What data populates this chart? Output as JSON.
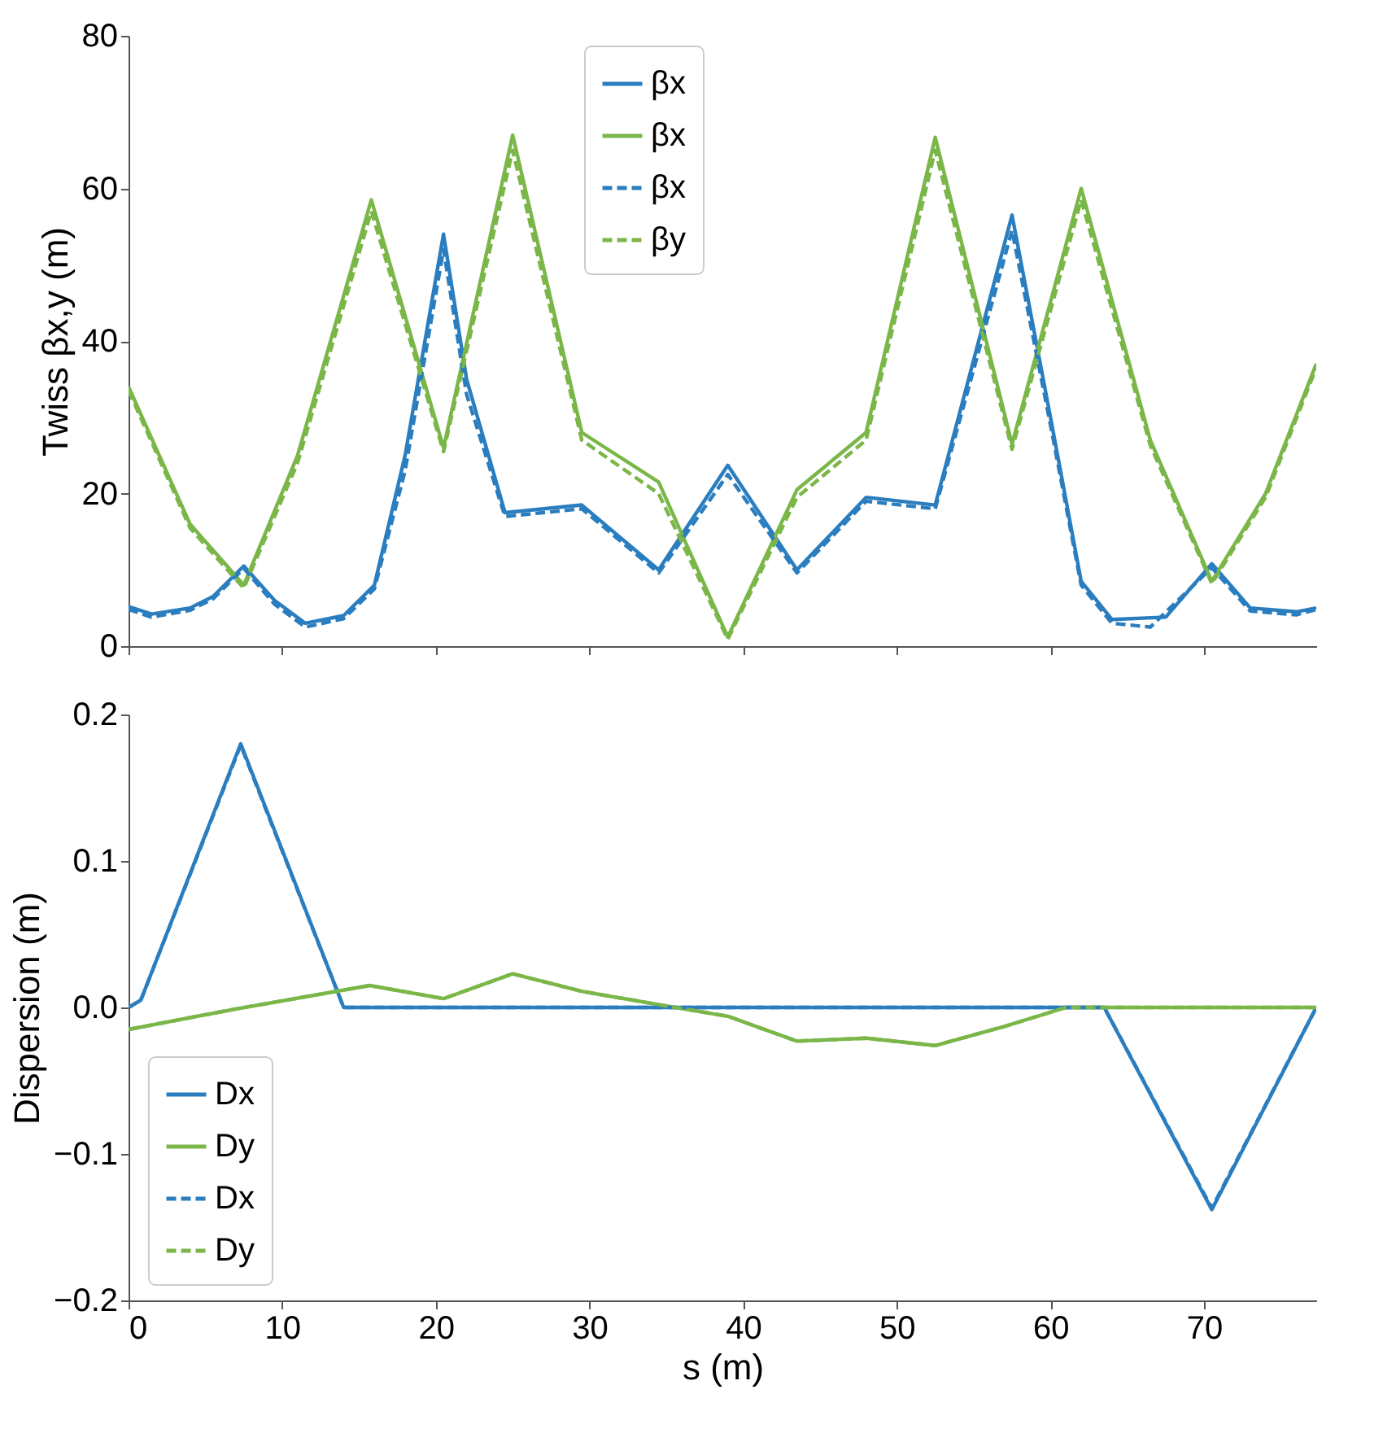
{
  "chart_data": [
    {
      "type": "line",
      "ylabel": "Twiss βx,y (m)",
      "xlim": [
        0,
        77.3
      ],
      "xticks": [
        0,
        10,
        20,
        30,
        40,
        50,
        60,
        70
      ],
      "ylim": [
        0,
        80
      ],
      "yticks": [
        0,
        20,
        40,
        60,
        80
      ],
      "tick_labels": "y",
      "legend": "top",
      "series": [
        {
          "name": "βx",
          "color": "#2a7ebf",
          "line_style": "solid",
          "x": [
            0,
            1.5,
            4,
            5.5,
            7.5,
            9.5,
            11.5,
            14,
            16,
            18,
            20.5,
            22,
            24.5,
            29.5,
            34.5,
            39,
            43.5,
            48,
            52.5,
            57.5,
            60,
            62,
            64,
            67.5,
            70.5,
            73,
            76,
            77.3
          ],
          "values": [
            5.2,
            4.2,
            5,
            6.5,
            10.5,
            6,
            3,
            4,
            8,
            25,
            54,
            35,
            17.5,
            18.5,
            10,
            23.7,
            10,
            19.5,
            18.5,
            56.5,
            30,
            8.5,
            3.5,
            3.8,
            10.8,
            5,
            4.5,
            5
          ]
        },
        {
          "name": "βx",
          "color": "#7ab648",
          "line_style": "solid",
          "x": [
            0,
            2,
            4,
            7.5,
            11,
            15.8,
            20.5,
            25,
            29.5,
            34.5,
            39,
            43.5,
            48,
            52.5,
            57.5,
            62,
            66.5,
            70.5,
            74,
            77.3
          ],
          "values": [
            34,
            25,
            16,
            8,
            25,
            58.5,
            26,
            67,
            28,
            21.5,
            1.2,
            20.5,
            28,
            66.7,
            26.5,
            60,
            27,
            8.5,
            20,
            37
          ]
        },
        {
          "name": "βx",
          "color": "#2a7ebf",
          "line_style": "dashed",
          "x": [
            0,
            1.5,
            4,
            5.5,
            7.5,
            9.5,
            11.5,
            14,
            16,
            18,
            20.5,
            22,
            24.5,
            29.5,
            34.5,
            39,
            43.5,
            48,
            52.5,
            57.5,
            60,
            62,
            64,
            66.5,
            70.5,
            73,
            76,
            77.3
          ],
          "values": [
            4.8,
            3.8,
            4.7,
            6.2,
            10.2,
            5.5,
            2.5,
            3.6,
            7.5,
            23,
            52,
            33,
            17,
            18,
            9.6,
            22.5,
            9.6,
            19,
            18,
            54.5,
            29,
            8,
            3,
            2.5,
            10.3,
            4.6,
            4.1,
            4.8
          ]
        },
        {
          "name": "βy",
          "color": "#7ab648",
          "line_style": "dashed",
          "x": [
            0,
            2,
            4,
            7.5,
            11,
            15.8,
            20.5,
            25,
            29.5,
            34.5,
            39,
            43.5,
            48,
            52.5,
            57.5,
            62,
            66.5,
            70.5,
            74,
            77.3
          ],
          "values": [
            33.5,
            24.5,
            15.5,
            7.6,
            24,
            57,
            25.5,
            65,
            27,
            20,
            0.9,
            19.5,
            27,
            65,
            25.8,
            58.5,
            26.3,
            8.2,
            19.5,
            36.5
          ]
        }
      ]
    },
    {
      "type": "line",
      "ylabel": "Dispersion (m)",
      "xlabel": "s (m)",
      "xlim": [
        0,
        77.3
      ],
      "xticks": [
        0,
        10,
        20,
        30,
        40,
        50,
        60,
        70
      ],
      "ylim": [
        -0.2,
        0.2
      ],
      "yticks": [
        -0.2,
        -0.1,
        {
          "value": 0,
          "label": "0.0"
        },
        0.1,
        0.2
      ],
      "legend": "bottom left",
      "series": [
        {
          "name": "Dx",
          "color": "#2a7ebf",
          "line_style": "solid",
          "x": [
            0,
            0.8,
            7.3,
            14,
            63.5,
            70.5,
            77.3
          ],
          "values": [
            0,
            0.005,
            0.18,
            0,
            0,
            -0.138,
            0
          ]
        },
        {
          "name": "Dy",
          "color": "#7ab648",
          "line_style": "solid",
          "x": [
            0,
            7,
            15.7,
            20.5,
            25,
            29.5,
            35,
            39,
            43.5,
            48,
            52.5,
            57,
            61,
            77.3
          ],
          "values": [
            -0.015,
            -0.001,
            0.015,
            0.006,
            0.023,
            0.011,
            0.001,
            -0.006,
            -0.023,
            -0.021,
            -0.026,
            -0.013,
            0,
            0
          ]
        },
        {
          "name": "Dx",
          "color": "#2a7ebf",
          "line_style": "dashed",
          "x": [
            0,
            0.8,
            7.3,
            14,
            63.5,
            70.5,
            77.3
          ],
          "values": [
            0,
            0.005,
            0.179,
            0,
            0,
            -0.137,
            0
          ]
        },
        {
          "name": "Dy",
          "color": "#7ab648",
          "line_style": "dashed",
          "x": [
            0,
            7,
            15.7,
            20.5,
            25,
            29.5,
            35,
            39,
            43.5,
            48,
            52.5,
            57,
            61,
            77.3
          ],
          "values": [
            -0.015,
            -0.001,
            0.015,
            0.006,
            0.023,
            0.011,
            0.001,
            -0.006,
            -0.023,
            -0.021,
            -0.026,
            -0.013,
            0,
            0
          ]
        }
      ]
    }
  ]
}
